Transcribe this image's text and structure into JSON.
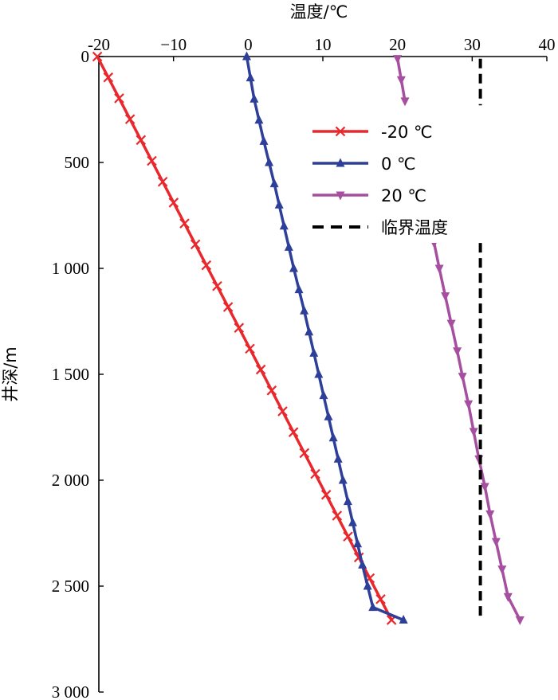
{
  "chart_data": {
    "type": "line",
    "xlabel": "温度/℃",
    "ylabel": "井深/m",
    "xlim": [
      -20,
      40
    ],
    "ylim": [
      0,
      3000
    ],
    "x_ticks": [
      -20,
      -10,
      0,
      10,
      20,
      30,
      40
    ],
    "x_tick_labels": [
      "-20",
      "−10",
      "0",
      "10",
      "20",
      "30",
      "40"
    ],
    "y_ticks": [
      0,
      500,
      1000,
      1500,
      2000,
      2500,
      3000
    ],
    "y_tick_labels": [
      "0",
      "500",
      "1 000",
      "1 500",
      "2 000",
      "2 500",
      "3 000"
    ],
    "legend_position": "upper-right",
    "series": [
      {
        "name": "-20 ℃",
        "color": "#e8282c",
        "marker": "x",
        "points": [
          [
            -20.2,
            0
          ],
          [
            19.2,
            2660
          ]
        ]
      },
      {
        "name": "0 ℃",
        "color": "#2e3f9a",
        "marker": "triangle-up",
        "points": [
          [
            -0.2,
            0
          ],
          [
            0.8,
            200
          ],
          [
            2.1,
            400
          ],
          [
            3.5,
            600
          ],
          [
            4.8,
            800
          ],
          [
            6.1,
            1000
          ],
          [
            7.5,
            1200
          ],
          [
            8.8,
            1400
          ],
          [
            10.1,
            1600
          ],
          [
            11.4,
            1800
          ],
          [
            12.7,
            2000
          ],
          [
            14.0,
            2200
          ],
          [
            15.3,
            2400
          ],
          [
            16.7,
            2600
          ],
          [
            20.8,
            2660
          ]
        ]
      },
      {
        "name": "20 ℃",
        "color": "#a64fa0",
        "marker": "triangle-down",
        "segments": [
          [
            [
              20.0,
              10
            ],
            [
              20.5,
              110
            ],
            [
              21.0,
              210
            ]
          ],
          [
            [
              24.9,
              880
            ],
            [
              25.6,
              1000
            ],
            [
              26.4,
              1130
            ],
            [
              27.2,
              1260
            ],
            [
              28.0,
              1390
            ],
            [
              28.7,
              1510
            ],
            [
              29.5,
              1640
            ],
            [
              30.2,
              1770
            ],
            [
              30.9,
              1900
            ],
            [
              31.7,
              2030
            ],
            [
              32.4,
              2160
            ],
            [
              33.2,
              2290
            ],
            [
              34.0,
              2420
            ],
            [
              34.8,
              2550
            ],
            [
              36.4,
              2660
            ]
          ]
        ]
      },
      {
        "name": "临界温度",
        "color": "#000000",
        "line_style": "dashed",
        "segments": [
          [
            [
              31.1,
              10
            ],
            [
              31.1,
              230
            ]
          ],
          [
            [
              31.1,
              880
            ],
            [
              31.1,
              2660
            ]
          ]
        ]
      }
    ]
  }
}
